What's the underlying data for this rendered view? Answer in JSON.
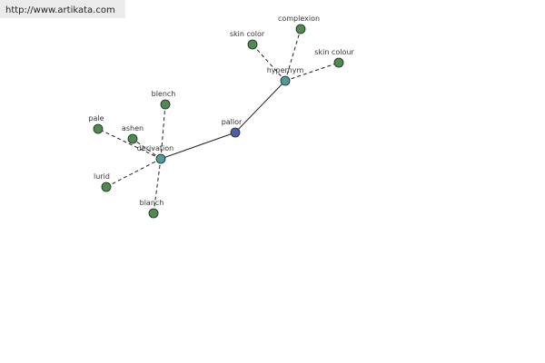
{
  "header": {
    "url": "http://www.artikata.com"
  },
  "nodes": [
    {
      "label": "pallor"
    },
    {
      "label": "derivation"
    },
    {
      "label": "hypernym"
    },
    {
      "label": "blench"
    },
    {
      "label": "pale"
    },
    {
      "label": "ashen"
    },
    {
      "label": "lurid"
    },
    {
      "label": "blanch"
    },
    {
      "label": "skin color"
    },
    {
      "label": "complexion"
    },
    {
      "label": "skin colour"
    }
  ]
}
